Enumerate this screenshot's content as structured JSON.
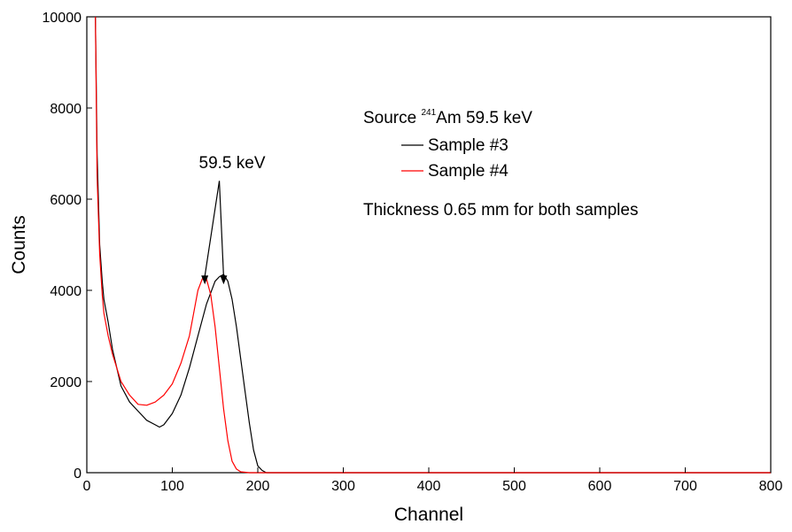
{
  "chart_data": {
    "type": "line",
    "title": "",
    "xlabel": "Channel",
    "ylabel": "Counts",
    "xlim": [
      0,
      800
    ],
    "ylim": [
      0,
      10000
    ],
    "x_ticks": [
      0,
      100,
      200,
      300,
      400,
      500,
      600,
      700,
      800
    ],
    "y_ticks": [
      0,
      2000,
      4000,
      6000,
      8000,
      10000
    ],
    "grid": false,
    "legend": {
      "placement": "top-right",
      "header": {
        "prefix": "Source ",
        "isotope_mass": "241",
        "suffix": "Am 59.5 keV"
      },
      "footer": "Thickness 0.65 mm for both samples"
    },
    "annotation": {
      "text": "59.5 keV",
      "arrow_tip": [
        155,
        6400
      ],
      "arrow_targets": [
        [
          138,
          4150
        ],
        [
          160,
          4150
        ]
      ]
    },
    "series": [
      {
        "name": "Sample #3",
        "color": "#000000",
        "x": [
          10,
          12,
          15,
          18,
          20,
          25,
          30,
          40,
          50,
          60,
          70,
          80,
          85,
          90,
          100,
          110,
          120,
          130,
          140,
          150,
          155,
          160,
          165,
          170,
          175,
          180,
          185,
          190,
          195,
          200,
          205,
          210,
          250,
          300,
          400,
          500,
          600,
          700,
          800
        ],
        "y": [
          10000,
          7000,
          5000,
          4200,
          3800,
          3300,
          2700,
          1900,
          1550,
          1350,
          1150,
          1050,
          1000,
          1050,
          1300,
          1700,
          2300,
          3000,
          3700,
          4200,
          4300,
          4350,
          4200,
          3800,
          3200,
          2500,
          1800,
          1100,
          500,
          150,
          50,
          0,
          0,
          0,
          0,
          0,
          0,
          0,
          0
        ]
      },
      {
        "name": "Sample #4",
        "color": "#ff0000",
        "x": [
          10,
          12,
          15,
          18,
          20,
          25,
          30,
          40,
          50,
          60,
          70,
          80,
          90,
          100,
          110,
          120,
          125,
          130,
          135,
          138,
          140,
          145,
          150,
          155,
          160,
          165,
          170,
          175,
          180,
          190,
          200,
          250,
          300,
          400,
          500,
          600,
          700,
          800
        ],
        "y": [
          10000,
          6500,
          4800,
          3900,
          3500,
          3000,
          2600,
          2000,
          1700,
          1500,
          1480,
          1550,
          1700,
          1950,
          2400,
          3000,
          3500,
          4000,
          4250,
          4300,
          4250,
          3900,
          3200,
          2300,
          1400,
          700,
          250,
          80,
          20,
          0,
          0,
          0,
          0,
          0,
          0,
          0,
          0,
          0
        ]
      }
    ]
  }
}
